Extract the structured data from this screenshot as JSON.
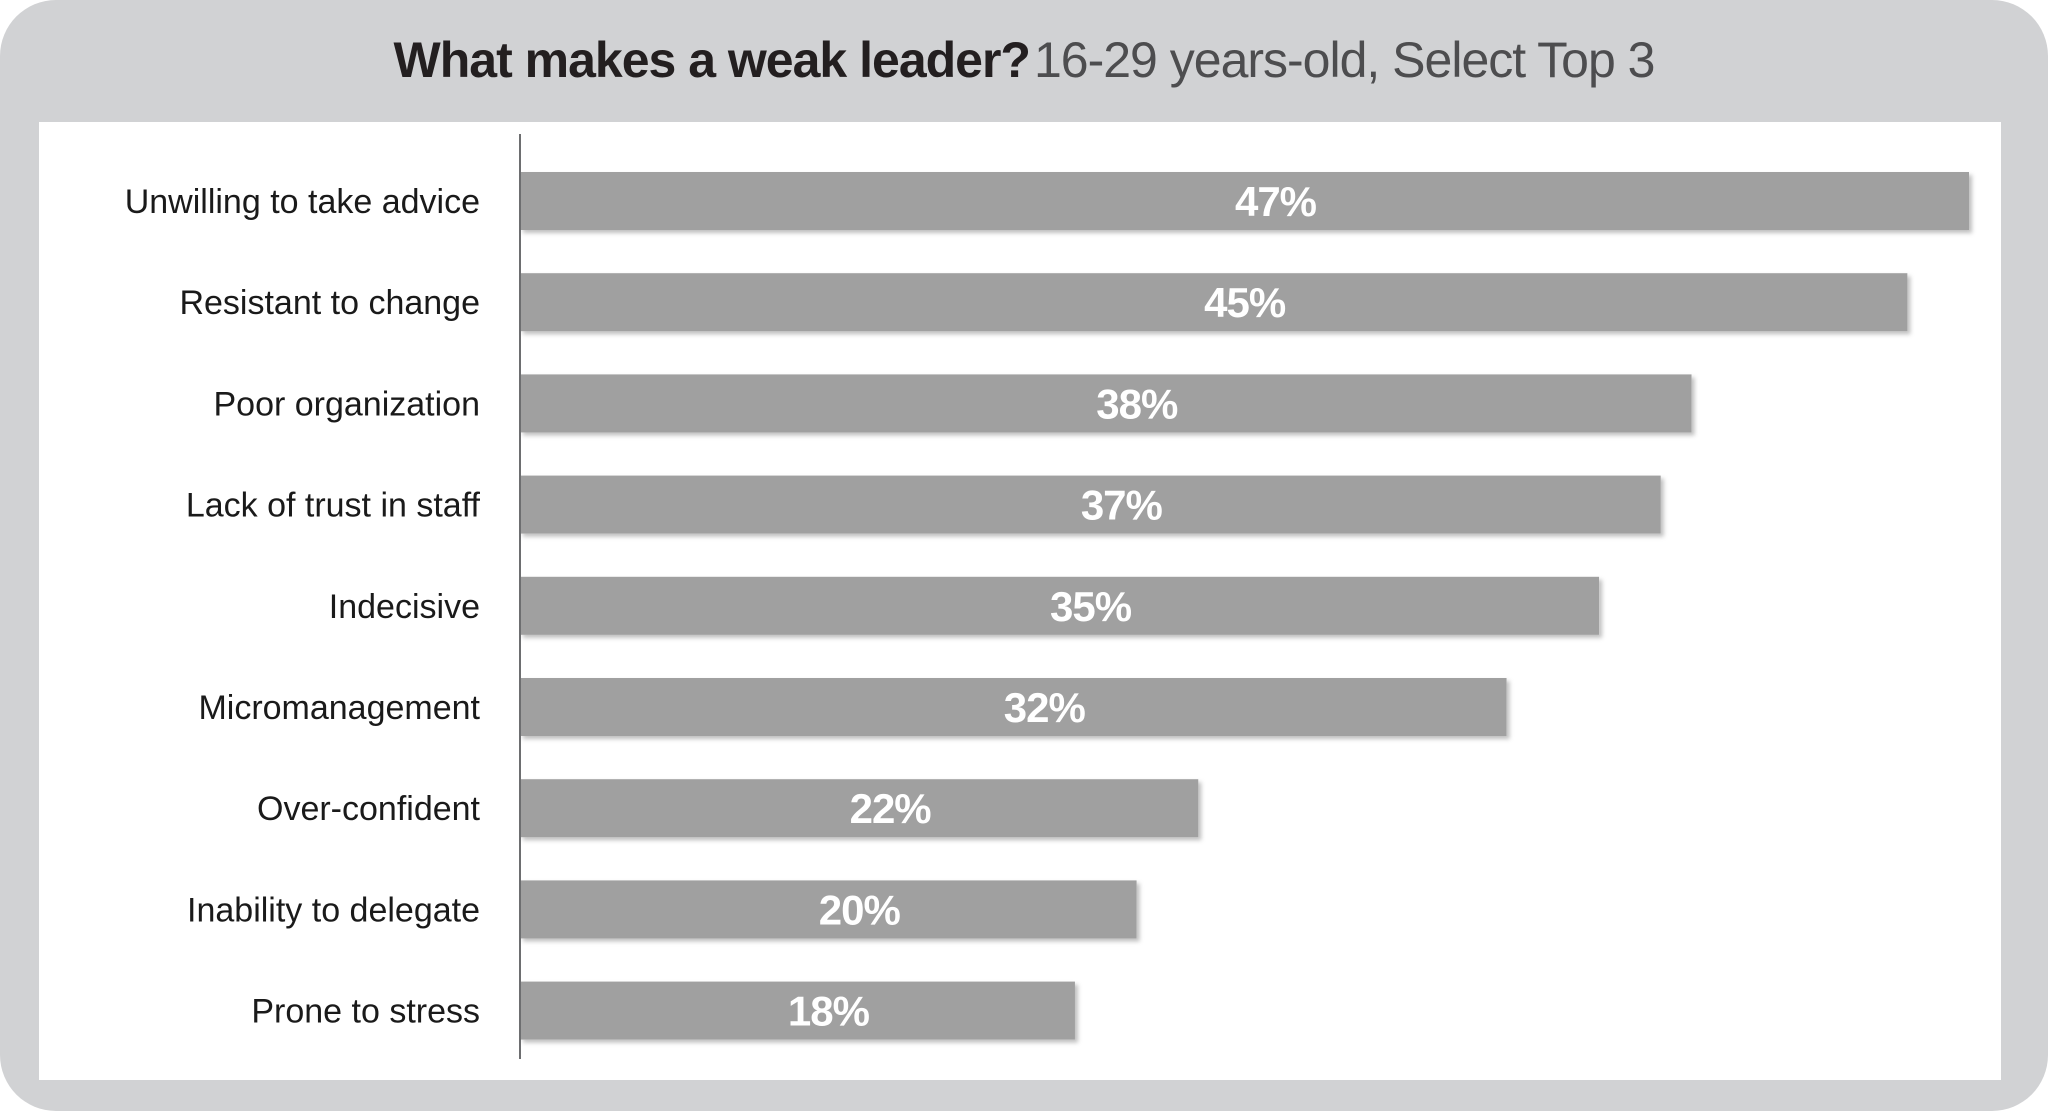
{
  "chart_data": {
    "type": "bar",
    "orientation": "horizontal",
    "title": "What makes a weak leader?",
    "subtitle": "16-29 years-old, Select Top 3",
    "categories": [
      "Unwilling to take advice",
      "Resistant to change",
      "Poor organization",
      "Lack of trust in staff",
      "Indecisive",
      "Micromanagement",
      "Over-confident",
      "Inability to delegate",
      "Prone to stress"
    ],
    "values": [
      47,
      45,
      38,
      37,
      35,
      32,
      22,
      20,
      18
    ],
    "value_labels": [
      "47%",
      "45%",
      "38%",
      "37%",
      "35%",
      "32%",
      "22%",
      "20%",
      "18%"
    ],
    "unit": "%",
    "xlim": [
      0,
      47
    ],
    "grid": false,
    "legend": "none",
    "bar_color": "#a0a0a0",
    "frame_color": "#d1d2d4"
  }
}
